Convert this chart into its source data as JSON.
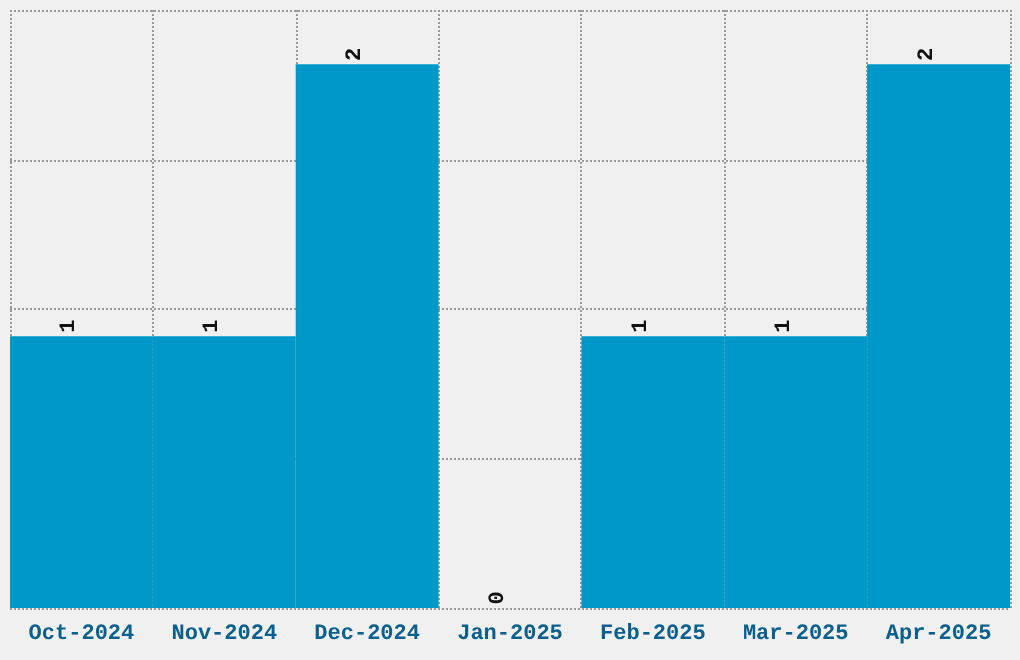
{
  "chart_data": {
    "type": "bar",
    "categories": [
      "Oct-2024",
      "Nov-2024",
      "Dec-2024",
      "Jan-2025",
      "Feb-2025",
      "Mar-2025",
      "Apr-2025"
    ],
    "values": [
      1,
      1,
      2,
      0,
      1,
      1,
      2
    ],
    "color": "#0097c9",
    "data_labels": true,
    "ylim": [
      0,
      2.2
    ],
    "yticks": [
      {
        "value": 0,
        "label": null
      },
      {
        "value": 0.55,
        "label": null
      },
      {
        "value": 1.1,
        "label": null
      },
      {
        "value": 1.65,
        "label": null
      },
      {
        "value": 2.2,
        "label": null
      }
    ],
    "tick_labels": "x",
    "grid": true
  }
}
